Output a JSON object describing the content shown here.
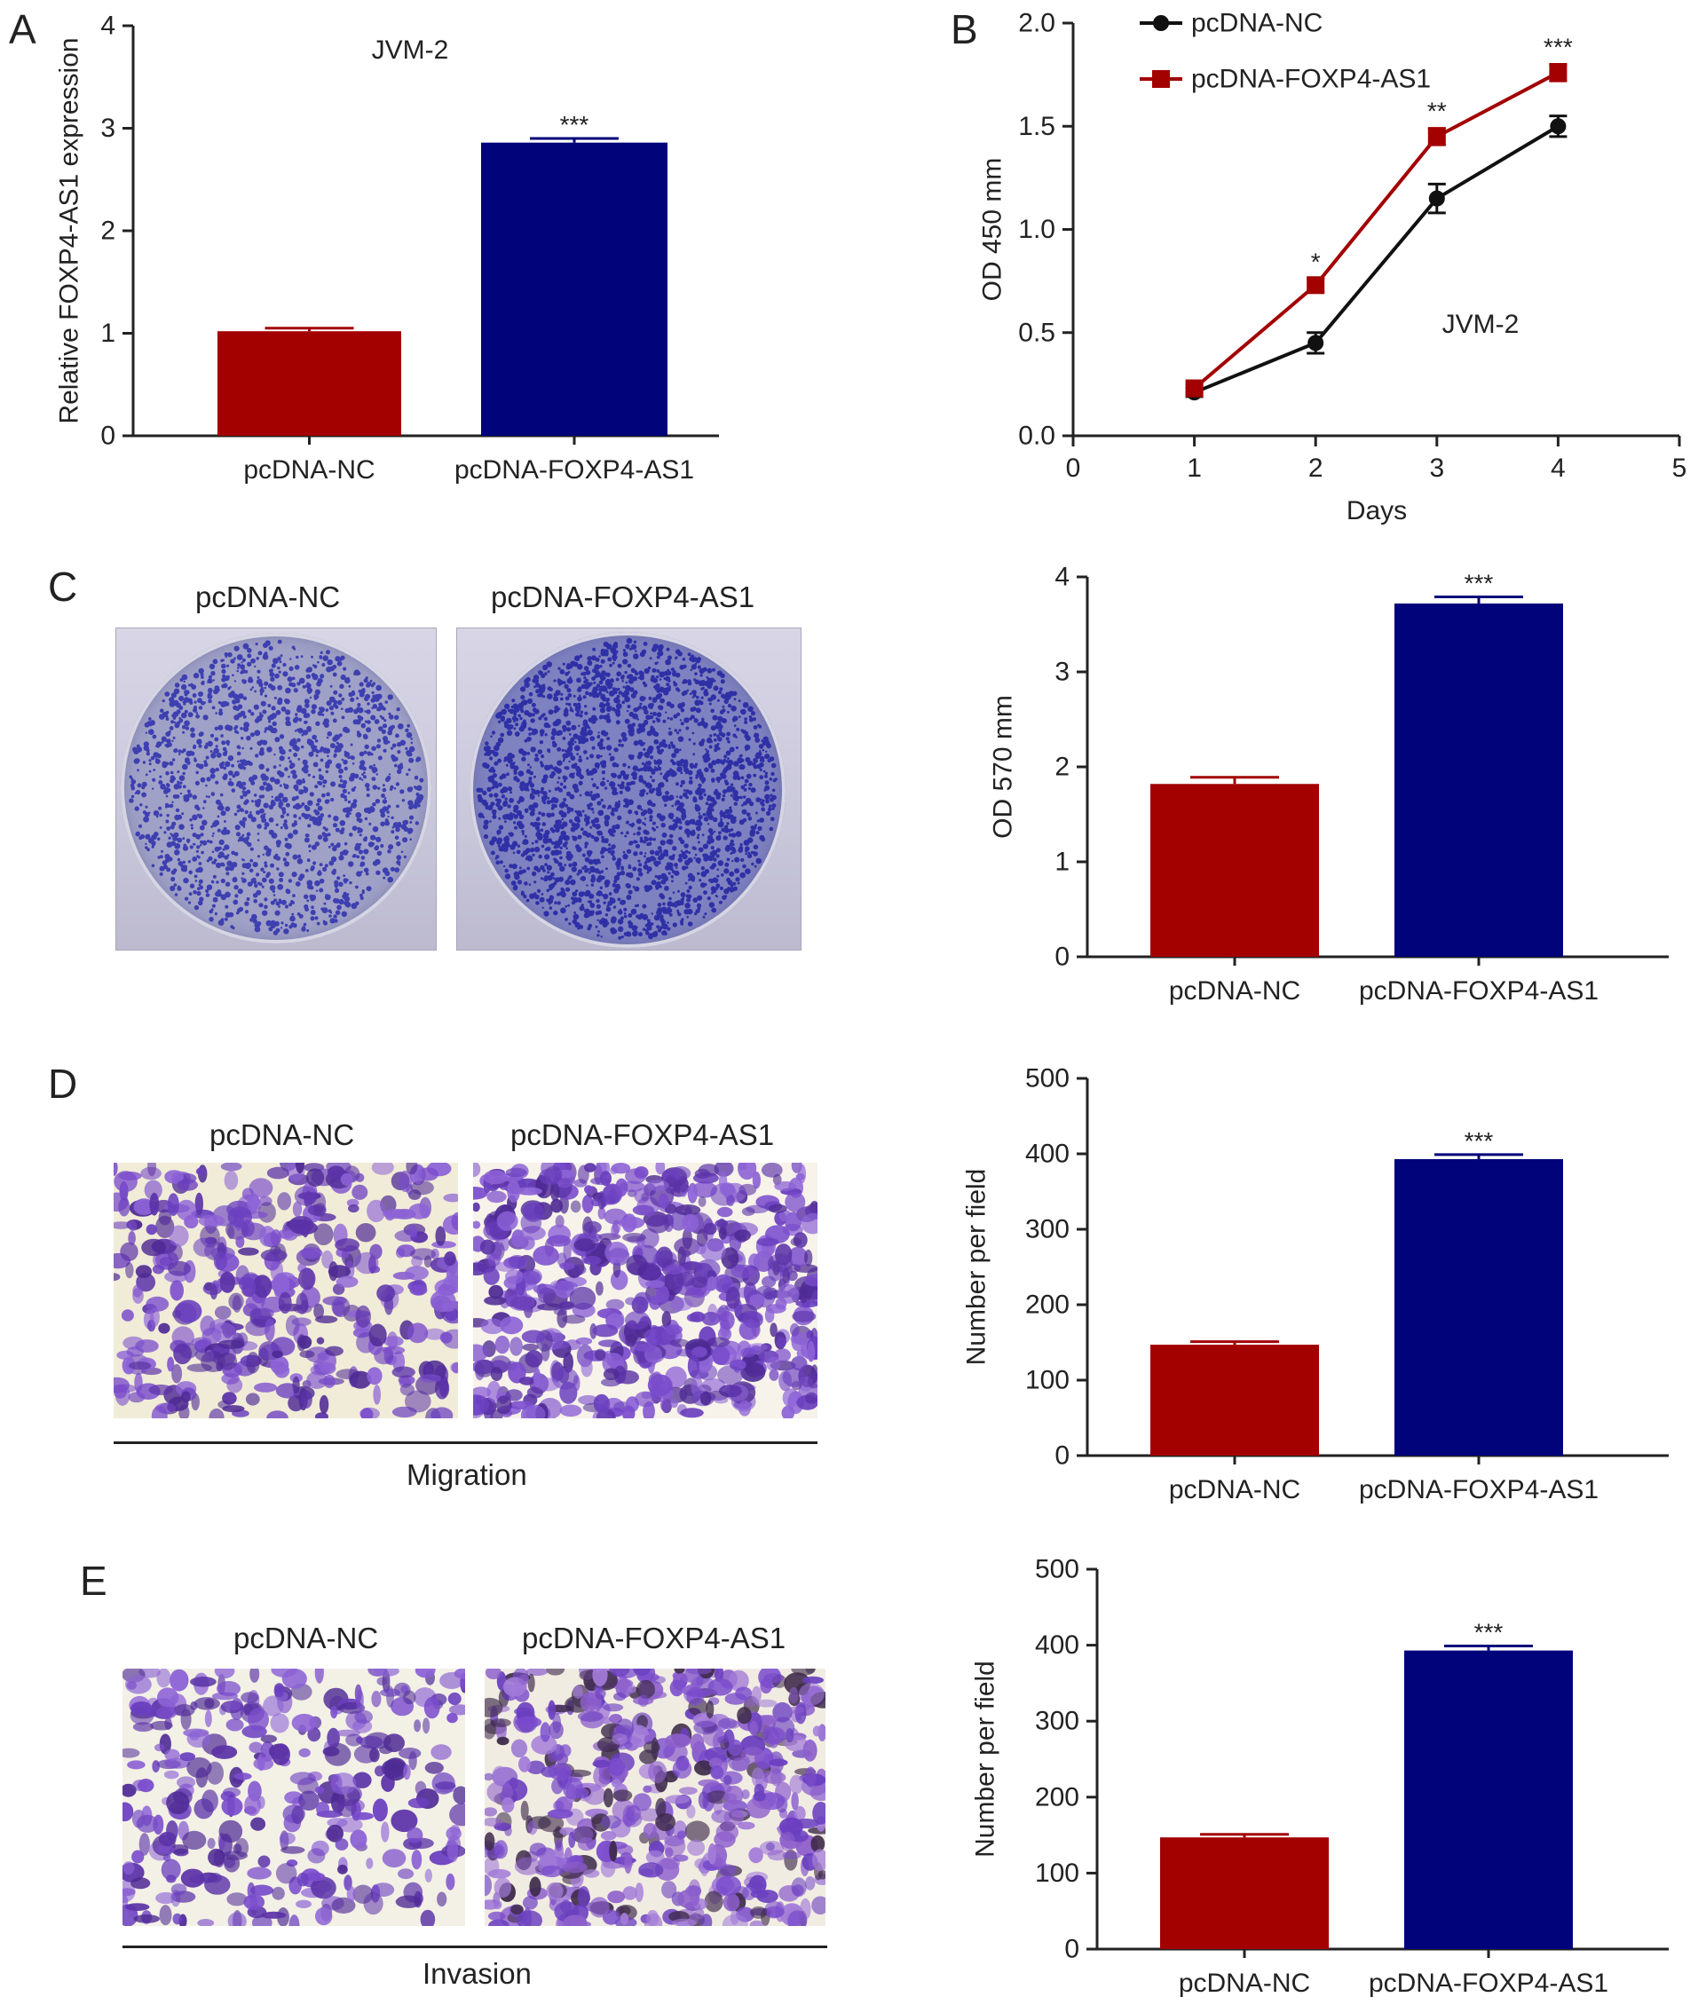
{
  "panels": {
    "A": {
      "letter": "A"
    },
    "B": {
      "letter": "B"
    },
    "C": {
      "letter": "C",
      "img_labels": [
        "pcDNA-NC",
        "pcDNA-FOXP4-AS1"
      ]
    },
    "D": {
      "letter": "D",
      "img_labels": [
        "pcDNA-NC",
        "pcDNA-FOXP4-AS1"
      ],
      "caption": "Migration"
    },
    "E": {
      "letter": "E",
      "img_labels": [
        "pcDNA-NC",
        "pcDNA-FOXP4-AS1"
      ],
      "caption": "Invasion"
    }
  },
  "colors": {
    "nc": "#a30000",
    "foxp4": "#00037a",
    "axis": "#222222",
    "nc_line": "#111111"
  },
  "chart_data": [
    {
      "id": "A",
      "type": "bar",
      "title": "JVM-2",
      "ylabel": "Relative FOXP4-AS1 expression",
      "xlabel": "",
      "categories": [
        "pcDNA-NC",
        "pcDNA-FOXP4-AS1"
      ],
      "values": [
        1.02,
        2.86
      ],
      "errors": [
        0.03,
        0.04
      ],
      "significance": [
        "",
        "***"
      ],
      "ylim": [
        0,
        4
      ],
      "yticks": [
        "0",
        "1",
        "2",
        "3",
        "4"
      ],
      "grid": false
    },
    {
      "id": "B",
      "type": "line",
      "title": "JVM-2",
      "xlabel": "Days",
      "ylabel": "OD 450 mm",
      "x": [
        1,
        2,
        3,
        4
      ],
      "xlim": [
        0,
        5
      ],
      "xticks": [
        "0",
        "1",
        "2",
        "3",
        "4",
        "5"
      ],
      "ylim": [
        0,
        2.0
      ],
      "yticks": [
        "0.0",
        "0.5",
        "1.0",
        "1.5",
        "2.0"
      ],
      "legend_position": "top-left",
      "grid": false,
      "series": [
        {
          "name": "pcDNA-NC",
          "values": [
            0.21,
            0.45,
            1.15,
            1.5
          ],
          "errors": [
            0.02,
            0.05,
            0.07,
            0.05
          ],
          "marker": "circle"
        },
        {
          "name": "pcDNA-FOXP4-AS1",
          "values": [
            0.23,
            0.73,
            1.45,
            1.76
          ],
          "errors": [
            0.02,
            0.03,
            0.04,
            0.04
          ],
          "marker": "square"
        }
      ],
      "significance": [
        "",
        "*",
        "**",
        "***"
      ]
    },
    {
      "id": "C",
      "type": "bar",
      "ylabel": "OD 570 mm",
      "xlabel": "",
      "categories": [
        "pcDNA-NC",
        "pcDNA-FOXP4-AS1"
      ],
      "values": [
        1.82,
        3.72
      ],
      "errors": [
        0.07,
        0.07
      ],
      "significance": [
        "",
        "***"
      ],
      "ylim": [
        0,
        4
      ],
      "yticks": [
        "0",
        "1",
        "2",
        "3",
        "4"
      ],
      "grid": false
    },
    {
      "id": "D",
      "type": "bar",
      "ylabel": "Number per field",
      "xlabel": "",
      "categories": [
        "pcDNA-NC",
        "pcDNA-FOXP4-AS1"
      ],
      "values": [
        147,
        393
      ],
      "errors": [
        4,
        6
      ],
      "significance": [
        "",
        "***"
      ],
      "ylim": [
        0,
        500
      ],
      "yticks": [
        "0",
        "100",
        "200",
        "300",
        "400",
        "500"
      ],
      "grid": false
    },
    {
      "id": "E",
      "type": "bar",
      "ylabel": "Number per field",
      "xlabel": "",
      "categories": [
        "pcDNA-NC",
        "pcDNA-FOXP4-AS1"
      ],
      "values": [
        147,
        393
      ],
      "errors": [
        4,
        6
      ],
      "significance": [
        "",
        "***"
      ],
      "ylim": [
        0,
        500
      ],
      "yticks": [
        "0",
        "100",
        "200",
        "300",
        "400",
        "500"
      ],
      "grid": false
    }
  ]
}
